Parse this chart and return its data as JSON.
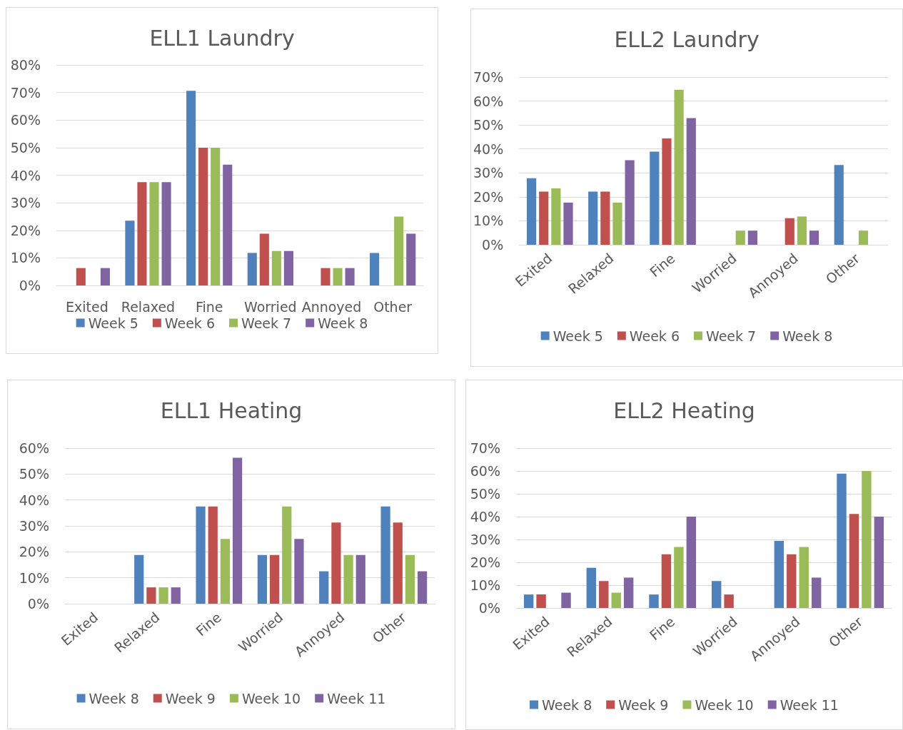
{
  "chart_data": [
    {
      "type": "bar",
      "title": "ELL1 Laundry",
      "categories": [
        "Exited",
        "Relaxed",
        "Fine",
        "Worried",
        "Annoyed",
        "Other"
      ],
      "ylim": [
        0,
        80
      ],
      "yticks": [
        {
          "value": 0,
          "label": "0%"
        },
        {
          "value": 10,
          "label": "10%"
        },
        {
          "value": 20,
          "label": "20%"
        },
        {
          "value": 30,
          "label": "30%"
        },
        {
          "value": 40,
          "label": "40%"
        },
        {
          "value": 50,
          "label": "50%"
        },
        {
          "value": 60,
          "label": "60%"
        },
        {
          "value": 70,
          "label": "70%"
        },
        {
          "value": 80,
          "label": "80%"
        }
      ],
      "grid": "y",
      "legend": "bottom",
      "series": [
        {
          "name": "Week 5",
          "color": "#4f81bd",
          "values": [
            0,
            23.5,
            70.6,
            11.8,
            0,
            11.8
          ]
        },
        {
          "name": "Week 6",
          "color": "#c0504d",
          "values": [
            6.3,
            37.5,
            50,
            18.8,
            6.3,
            0
          ]
        },
        {
          "name": "Week 7",
          "color": "#9bbb59",
          "values": [
            0,
            37.5,
            50,
            12.5,
            6.3,
            25
          ]
        },
        {
          "name": "Week 8",
          "color": "#8064a2",
          "values": [
            6.3,
            37.5,
            43.8,
            12.5,
            6.3,
            18.8
          ]
        }
      ]
    },
    {
      "type": "bar",
      "title": "ELL2 Laundry",
      "categories": [
        "Exited",
        "Relaxed",
        "Fine",
        "Worried",
        "Annoyed",
        "Other"
      ],
      "ylim": [
        0,
        70
      ],
      "yticks": [
        {
          "value": 0,
          "label": "0%"
        },
        {
          "value": 10,
          "label": "10%"
        },
        {
          "value": 20,
          "label": "20%"
        },
        {
          "value": 30,
          "label": "30%"
        },
        {
          "value": 40,
          "label": "40%"
        },
        {
          "value": 50,
          "label": "50%"
        },
        {
          "value": 60,
          "label": "60%"
        },
        {
          "value": 70,
          "label": "70%"
        }
      ],
      "grid": "y",
      "legend": "bottom",
      "series": [
        {
          "name": "Week 5",
          "color": "#4f81bd",
          "values": [
            27.8,
            22.2,
            38.9,
            0,
            0,
            33.3
          ]
        },
        {
          "name": "Week 6",
          "color": "#c0504d",
          "values": [
            22.2,
            22.2,
            44.4,
            0,
            11.1,
            0
          ]
        },
        {
          "name": "Week 7",
          "color": "#9bbb59",
          "values": [
            23.5,
            17.6,
            64.7,
            5.9,
            11.8,
            5.9
          ]
        },
        {
          "name": "Week 8",
          "color": "#8064a2",
          "values": [
            17.6,
            35.3,
            52.9,
            5.9,
            5.9,
            0
          ]
        }
      ]
    },
    {
      "type": "bar",
      "title": "ELL1 Heating",
      "categories": [
        "Exited",
        "Relaxed",
        "Fine",
        "Worried",
        "Annoyed",
        "Other"
      ],
      "ylim": [
        0,
        60
      ],
      "yticks": [
        {
          "value": 0,
          "label": "0%"
        },
        {
          "value": 10,
          "label": "10%"
        },
        {
          "value": 20,
          "label": "20%"
        },
        {
          "value": 30,
          "label": "30%"
        },
        {
          "value": 40,
          "label": "40%"
        },
        {
          "value": 50,
          "label": "50%"
        },
        {
          "value": 60,
          "label": "60%"
        }
      ],
      "grid": "y",
      "legend": "bottom",
      "series": [
        {
          "name": "Week 8",
          "color": "#4f81bd",
          "values": [
            0,
            18.8,
            37.5,
            18.8,
            12.5,
            37.5
          ]
        },
        {
          "name": "Week 9",
          "color": "#c0504d",
          "values": [
            0,
            6.3,
            37.5,
            18.8,
            31.3,
            31.3
          ]
        },
        {
          "name": "Week 10",
          "color": "#9bbb59",
          "values": [
            0,
            6.3,
            25,
            37.5,
            18.8,
            18.8
          ]
        },
        {
          "name": "Week 11",
          "color": "#8064a2",
          "values": [
            0,
            6.3,
            56.3,
            25,
            18.8,
            12.5
          ]
        }
      ]
    },
    {
      "type": "bar",
      "title": "ELL2 Heating",
      "categories": [
        "Exited",
        "Relaxed",
        "Fine",
        "Worried",
        "Annoyed",
        "Other"
      ],
      "ylim": [
        0,
        70
      ],
      "yticks": [
        {
          "value": 0,
          "label": "0%"
        },
        {
          "value": 10,
          "label": "10%"
        },
        {
          "value": 20,
          "label": "20%"
        },
        {
          "value": 30,
          "label": "30%"
        },
        {
          "value": 40,
          "label": "40%"
        },
        {
          "value": 50,
          "label": "50%"
        },
        {
          "value": 60,
          "label": "60%"
        },
        {
          "value": 70,
          "label": "70%"
        }
      ],
      "grid": "y",
      "legend": "bottom",
      "series": [
        {
          "name": "Week 8",
          "color": "#4f81bd",
          "values": [
            5.9,
            17.6,
            5.9,
            11.8,
            29.4,
            58.8
          ]
        },
        {
          "name": "Week 9",
          "color": "#c0504d",
          "values": [
            5.9,
            11.8,
            23.5,
            5.9,
            23.5,
            41.2
          ]
        },
        {
          "name": "Week 10",
          "color": "#9bbb59",
          "values": [
            0,
            6.7,
            26.7,
            0,
            26.7,
            60
          ]
        },
        {
          "name": "Week 11",
          "color": "#8064a2",
          "values": [
            6.7,
            13.3,
            40,
            0,
            13.3,
            40
          ]
        }
      ]
    }
  ]
}
